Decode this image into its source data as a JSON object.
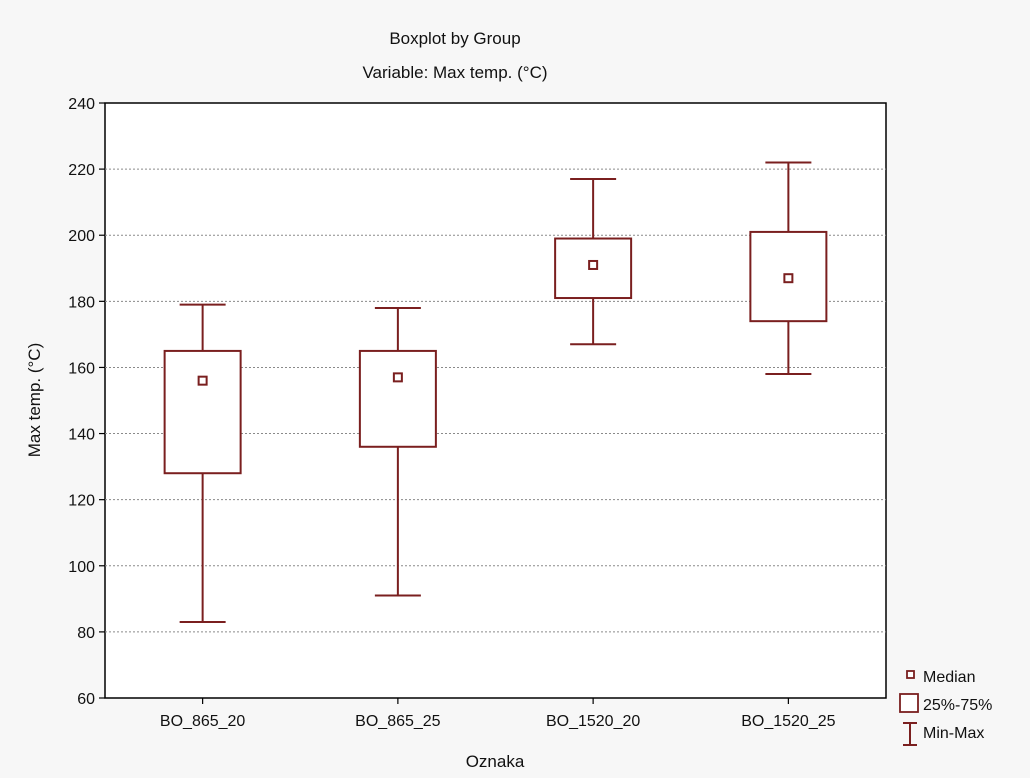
{
  "chart_data": {
    "type": "boxplot",
    "title": "Boxplot by Group",
    "subtitle": "Variable: Max temp. (°C)",
    "xlabel": "Oznaka",
    "ylabel": "Max temp. (°C)",
    "ylim": [
      60,
      240
    ],
    "yticks": [
      "60",
      "80",
      "100",
      "120",
      "140",
      "160",
      "180",
      "200",
      "220",
      "240"
    ],
    "grid": true,
    "categories": [
      "BO_865_20",
      "BO_865_25",
      "BO_1520_20",
      "BO_1520_25"
    ],
    "groups": [
      {
        "name": "BO_865_20",
        "min": 83,
        "q1": 128,
        "median": 156,
        "q3": 165,
        "max": 179
      },
      {
        "name": "BO_865_25",
        "min": 91,
        "q1": 136,
        "median": 157,
        "q3": 165,
        "max": 178
      },
      {
        "name": "BO_1520_20",
        "min": 167,
        "q1": 181,
        "median": 191,
        "q3": 199,
        "max": 217
      },
      {
        "name": "BO_1520_25",
        "min": 158,
        "q1": 174,
        "median": 187,
        "q3": 201,
        "max": 222
      }
    ],
    "legend": {
      "position": "bottom-right",
      "items": [
        {
          "label": "Median",
          "symbol": "small-square"
        },
        {
          "label": "25%-75%",
          "symbol": "box"
        },
        {
          "label": "Min-Max",
          "symbol": "whisker"
        }
      ]
    },
    "colors": {
      "series": "#7a1f1f",
      "plot_background": "#ffffff",
      "page_background": "#f7f7f7"
    }
  }
}
